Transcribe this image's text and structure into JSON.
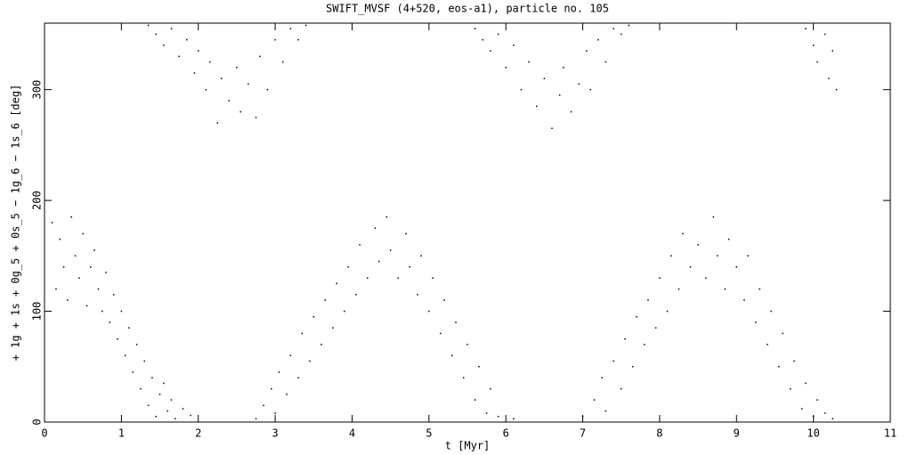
{
  "chart_data": {
    "type": "scatter",
    "title": "SWIFT_MVSF (4+520, eos-a1), particle no. 105",
    "x_label": "t [Myr]",
    "y_label": "+ 1g + 1s + 0g_5 + 0s_5 − 1g_6 − 1s_6 [deg]",
    "color": "#000000",
    "xlim": [
      0,
      11
    ],
    "xticks": [
      0,
      1,
      2,
      3,
      4,
      5,
      6,
      7,
      8,
      9,
      10,
      11
    ],
    "ylim": [
      0,
      360
    ],
    "yticks": [
      0,
      100,
      200,
      300
    ],
    "x": [
      0.1,
      0.15,
      0.2,
      0.25,
      0.3,
      0.35,
      0.4,
      0.45,
      0.5,
      0.55,
      0.6,
      0.65,
      0.7,
      0.75,
      0.8,
      0.85,
      0.9,
      0.95,
      1.0,
      1.05,
      1.1,
      1.15,
      1.2,
      1.25,
      1.3,
      1.35,
      1.4,
      1.45,
      1.5,
      1.55,
      1.6,
      1.65,
      1.7,
      1.8,
      1.9,
      2.75,
      2.85,
      2.95,
      3.0,
      3.05,
      3.15,
      3.2,
      3.3,
      3.35,
      3.45,
      3.5,
      3.6,
      3.65,
      3.75,
      3.8,
      3.9,
      3.95,
      4.05,
      4.1,
      4.2,
      4.3,
      4.35,
      4.45,
      4.5,
      4.6,
      4.7,
      4.75,
      4.85,
      4.9,
      5.0,
      5.05,
      5.15,
      5.2,
      5.3,
      5.35,
      5.45,
      5.5,
      5.6,
      5.65,
      5.75,
      5.8,
      5.9,
      6.1,
      7.0,
      7.15,
      7.25,
      7.3,
      7.4,
      7.5,
      7.55,
      7.65,
      7.7,
      7.8,
      7.85,
      7.95,
      8.0,
      8.1,
      8.15,
      8.25,
      8.3,
      8.4,
      8.5,
      8.6,
      8.7,
      8.75,
      8.85,
      8.9,
      9.0,
      9.1,
      9.15,
      9.25,
      9.3,
      9.4,
      9.45,
      9.55,
      9.6,
      9.7,
      9.75,
      9.85,
      9.9,
      10.0,
      10.05,
      10.15,
      10.25,
      1.35,
      1.45,
      1.55,
      1.65,
      1.75,
      1.85,
      1.95,
      2.0,
      2.1,
      2.15,
      2.25,
      2.3,
      2.4,
      2.5,
      2.55,
      2.65,
      2.75,
      2.8,
      2.9,
      3.0,
      3.1,
      3.2,
      3.3,
      3.4,
      5.6,
      5.7,
      5.8,
      5.9,
      6.0,
      6.1,
      6.2,
      6.3,
      6.4,
      6.5,
      6.6,
      6.7,
      6.75,
      6.85,
      6.95,
      7.05,
      7.1,
      7.2,
      7.3,
      7.4,
      7.5,
      7.6,
      9.9,
      10.0,
      10.05,
      10.15,
      10.2,
      10.25,
      10.3
    ],
    "y": [
      180,
      120,
      165,
      140,
      110,
      185,
      150,
      130,
      170,
      105,
      140,
      155,
      120,
      100,
      135,
      90,
      115,
      75,
      100,
      60,
      85,
      45,
      70,
      30,
      55,
      15,
      40,
      5,
      25,
      35,
      10,
      20,
      3,
      12,
      6,
      3,
      15,
      30,
      8,
      45,
      25,
      60,
      40,
      80,
      55,
      95,
      70,
      110,
      85,
      125,
      100,
      140,
      115,
      160,
      130,
      175,
      145,
      185,
      155,
      130,
      170,
      140,
      115,
      150,
      100,
      130,
      80,
      110,
      60,
      90,
      40,
      70,
      20,
      50,
      8,
      30,
      5,
      3,
      5,
      20,
      40,
      10,
      55,
      30,
      75,
      50,
      95,
      70,
      110,
      85,
      130,
      100,
      150,
      120,
      170,
      140,
      160,
      130,
      185,
      150,
      120,
      165,
      140,
      110,
      150,
      90,
      120,
      70,
      100,
      50,
      80,
      30,
      55,
      12,
      35,
      5,
      20,
      8,
      3,
      358,
      350,
      340,
      355,
      330,
      345,
      315,
      335,
      300,
      325,
      270,
      310,
      290,
      320,
      280,
      305,
      275,
      330,
      300,
      345,
      325,
      355,
      345,
      358,
      355,
      345,
      335,
      350,
      320,
      340,
      300,
      325,
      285,
      310,
      265,
      295,
      320,
      280,
      305,
      335,
      300,
      345,
      325,
      355,
      350,
      358,
      355,
      340,
      325,
      350,
      310,
      335,
      300
    ]
  }
}
